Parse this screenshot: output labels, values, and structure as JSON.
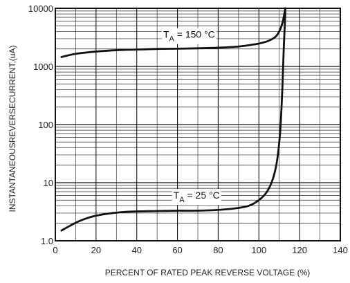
{
  "chart_data": {
    "type": "line",
    "xlabel": "PERCENT OF RATED PEAK REVERSE VOLTAGE  (%)",
    "ylabel": "INSTANTANEOUSREVERSECURRENT,(uA)",
    "xlim": [
      0,
      140
    ],
    "ylim": [
      1,
      10000
    ],
    "yscale": "log",
    "x_ticks": [
      "0",
      "20",
      "40",
      "60",
      "80",
      "100",
      "120",
      "140"
    ],
    "y_ticks": [
      "1.0",
      "10",
      "100",
      "1000",
      "10000"
    ],
    "grid": true,
    "series": [
      {
        "name": "T_A = 150 °C",
        "x": [
          3,
          10,
          20,
          30,
          40,
          50,
          60,
          70,
          80,
          90,
          98,
          104,
          108,
          110,
          111.5,
          112.5,
          113
        ],
        "y": [
          1450,
          1650,
          1800,
          1900,
          1950,
          2000,
          2020,
          2050,
          2100,
          2200,
          2400,
          2700,
          3200,
          4000,
          5500,
          8000,
          10000
        ]
      },
      {
        "name": "T_A = 25 °C",
        "x": [
          3,
          7,
          12,
          18,
          25,
          32,
          40,
          50,
          60,
          70,
          80,
          88,
          95,
          100,
          104,
          107,
          109,
          110.5,
          111.5,
          112.2,
          112.8,
          113
        ],
        "y": [
          1.5,
          1.8,
          2.2,
          2.6,
          2.9,
          3.1,
          3.2,
          3.25,
          3.3,
          3.3,
          3.4,
          3.6,
          4.0,
          5.0,
          7.0,
          12,
          25,
          80,
          400,
          2000,
          6000,
          10000
        ]
      }
    ],
    "annotations": [
      {
        "main": "T",
        "sub": "A",
        "rest": " = 150 °C",
        "x": 53,
        "y": 3100
      },
      {
        "main": "T",
        "sub": "A",
        "rest": " = 25 °C",
        "x": 58,
        "y": 5.3
      }
    ]
  }
}
